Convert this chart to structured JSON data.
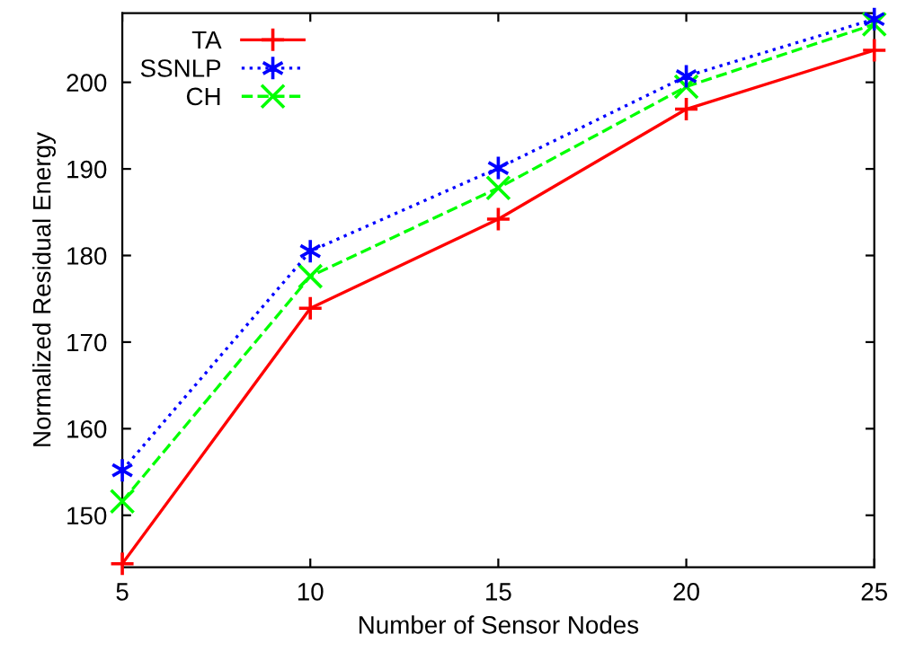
{
  "chart_data": {
    "type": "line",
    "xlabel": "Number of Sensor Nodes",
    "ylabel": "Normalized Residual Energy",
    "x": [
      5,
      10,
      15,
      20,
      25
    ],
    "xlim": [
      5,
      25
    ],
    "xticks": [
      5,
      10,
      15,
      20,
      25
    ],
    "ylim": [
      144,
      208
    ],
    "yticks": [
      150,
      160,
      170,
      180,
      190,
      200
    ],
    "grid": false,
    "legend": "top left",
    "series": [
      {
        "name": "TA",
        "color": "#ff0000",
        "marker": "plus",
        "line_style": "solid",
        "values": [
          144.4,
          173.9,
          184.2,
          196.9,
          203.7
        ]
      },
      {
        "name": "SSNLP",
        "color": "#0000ff",
        "marker": "cross",
        "line_style": "dotted",
        "values": [
          155.2,
          180.5,
          190.1,
          200.7,
          207.3
        ]
      },
      {
        "name": "CH",
        "color": "#00ff00",
        "marker": "cross",
        "line_style": "dashed",
        "values": [
          151.6,
          177.6,
          187.8,
          199.5,
          206.7
        ]
      }
    ]
  }
}
